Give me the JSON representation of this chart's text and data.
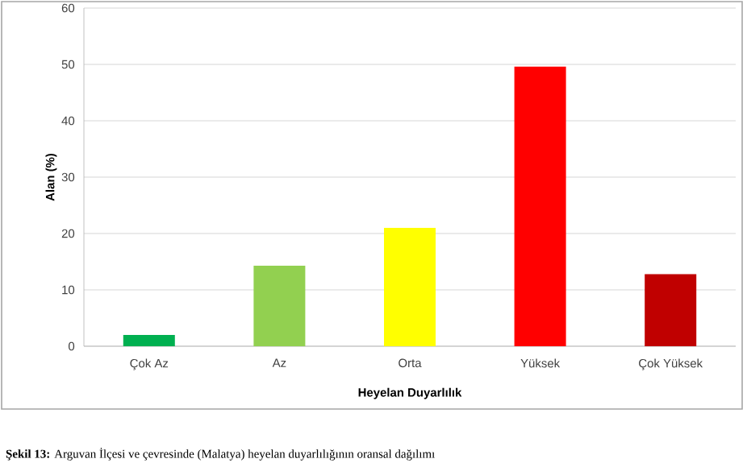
{
  "chart_data": {
    "type": "bar",
    "xlabel": "Heyelan Duyarlılık",
    "ylabel": "Alan (%)",
    "categories": [
      "Çok Az",
      "Az",
      "Orta",
      "Yüksek",
      "Çok Yüksek"
    ],
    "values": [
      2.0,
      14.3,
      21.0,
      49.6,
      12.8
    ],
    "colors": [
      "#00b050",
      "#92d050",
      "#ffff00",
      "#ff0000",
      "#c00000"
    ],
    "ylim": [
      0,
      60
    ],
    "yticks": [
      0,
      10,
      20,
      30,
      40,
      50,
      60
    ],
    "grid": "y",
    "annotations": [
      "**Şekil 13:** Arguvan İlçesi ve çevresinde (Malatya) heyelan duyarlılığının oransal dağılımı"
    ]
  }
}
